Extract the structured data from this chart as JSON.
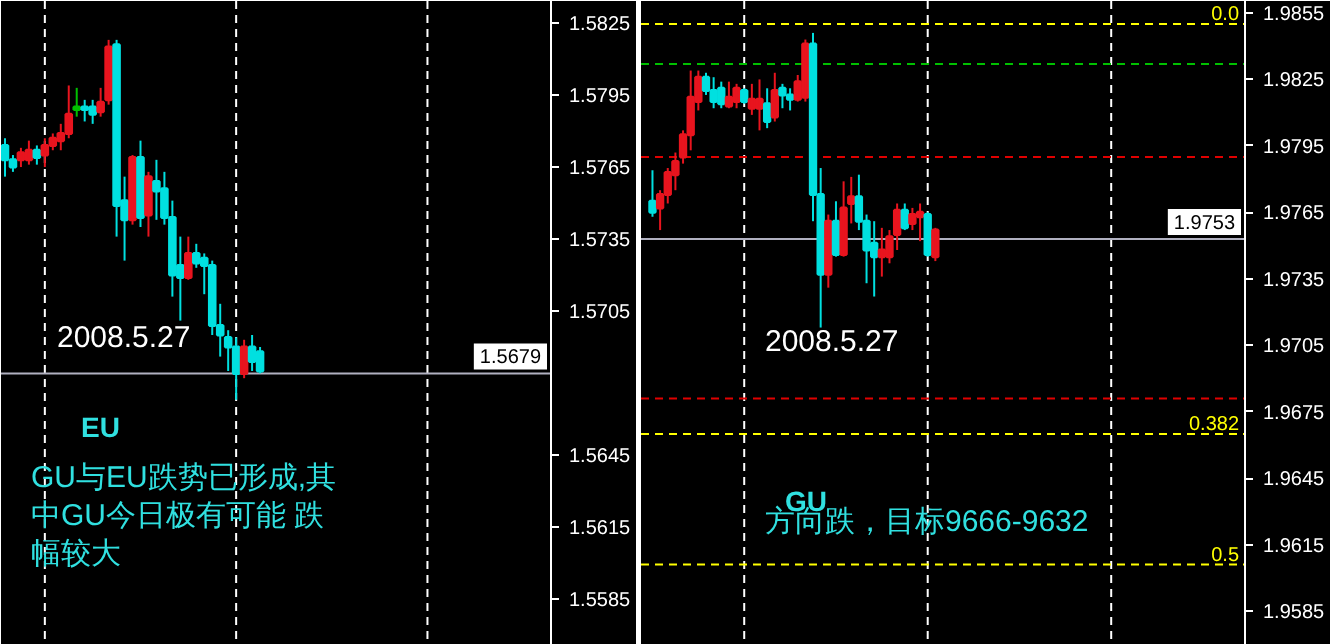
{
  "chart_data": [
    {
      "type": "candlestick",
      "tick_labels": "y",
      "categories": [
        null,
        null,
        null,
        null,
        null,
        null,
        null,
        null,
        null,
        null,
        null,
        null,
        null,
        null,
        null,
        null,
        null,
        null,
        null,
        null,
        null,
        null,
        null,
        null,
        null,
        null,
        null,
        null,
        null,
        null,
        null,
        null,
        null,
        null,
        null,
        null,
        null,
        null,
        null,
        null,
        null,
        null,
        null,
        null,
        null,
        null,
        null,
        null,
        null,
        null,
        null,
        null,
        null,
        null,
        null,
        null,
        null,
        null,
        null,
        null,
        null,
        null,
        null,
        null,
        null,
        null,
        null,
        null,
        null
      ],
      "ohlc": [
        [
          1.5774,
          1.5777,
          1.5761,
          1.5768
        ],
        [
          1.5768,
          1.577,
          1.5763,
          1.5765
        ],
        [
          1.5768,
          1.5773,
          1.5765,
          1.5771
        ],
        [
          1.5768,
          1.5776,
          1.5766,
          1.5772
        ],
        [
          1.5772,
          1.5774,
          1.5766,
          1.5769
        ],
        [
          1.577,
          1.5777,
          1.5765,
          1.5774
        ],
        [
          1.5774,
          1.5779,
          1.5772,
          1.5777
        ],
        [
          1.5776,
          1.5783,
          1.5772,
          1.5779
        ],
        [
          1.5779,
          1.5799,
          1.5777,
          1.5787
        ],
        [
          1.5789,
          1.5798,
          1.5786,
          1.579
        ],
        [
          1.579,
          1.5793,
          1.5784,
          1.5789
        ],
        [
          1.579,
          1.5793,
          1.5783,
          1.5787
        ],
        [
          1.5788,
          1.5798,
          1.5786,
          1.5792
        ],
        [
          1.5793,
          1.5818,
          1.5791,
          1.5815
        ],
        [
          1.5816,
          1.5818,
          1.5736,
          1.5749
        ],
        [
          1.5751,
          1.5761,
          1.5726,
          1.5743
        ],
        [
          1.5743,
          1.577,
          1.5741,
          1.5769
        ],
        [
          1.5769,
          1.5776,
          1.574,
          1.5744
        ],
        [
          1.5745,
          1.5763,
          1.5736,
          1.5761
        ],
        [
          1.5759,
          1.5768,
          1.5743,
          1.5755
        ],
        [
          1.5756,
          1.5763,
          1.5741,
          1.5744
        ],
        [
          1.5744,
          1.5751,
          1.5711,
          1.572
        ],
        [
          1.5724,
          1.5736,
          1.5701,
          1.5719
        ],
        [
          1.5719,
          1.5736,
          1.5718,
          1.5729
        ],
        [
          1.5729,
          1.5733,
          1.5723,
          1.5725
        ],
        [
          1.5727,
          1.5729,
          1.5712,
          1.5724
        ],
        [
          1.5724,
          1.5726,
          1.5695,
          1.5699
        ],
        [
          1.5699,
          1.5708,
          1.5686,
          1.5695
        ],
        [
          1.5694,
          1.5697,
          1.568,
          1.569
        ],
        [
          1.569,
          1.5694,
          1.5668,
          1.5679
        ],
        [
          1.5679,
          1.5693,
          1.5677,
          1.569
        ],
        [
          1.569,
          1.5695,
          1.568,
          1.5684
        ],
        [
          1.5688,
          1.569,
          1.5679,
          1.568
        ],
        null,
        null,
        null,
        null,
        null,
        null,
        null,
        null,
        null,
        null,
        null,
        null,
        null,
        null,
        null,
        null,
        null,
        null,
        null,
        null,
        null,
        null,
        null,
        null,
        null,
        null,
        null,
        null,
        null,
        null,
        null,
        null,
        null,
        null,
        null,
        null
      ],
      "colors": [
        "#00e0e0",
        "#00e0e0",
        "#e8141e",
        "#e8141e",
        "#00e0e0",
        "#e8141e",
        "#e8141e",
        "#e8141e",
        "#e8141e",
        "#00c000",
        "#00e0e0",
        "#00e0e0",
        "#e8141e",
        "#e8141e",
        "#00e0e0",
        "#00e0e0",
        "#e8141e",
        "#00e0e0",
        "#e8141e",
        "#00e0e0",
        "#00e0e0",
        "#00e0e0",
        "#00e0e0",
        "#e8141e",
        "#00e0e0",
        "#00e0e0",
        "#00e0e0",
        "#00e0e0",
        "#00e0e0",
        "#00e0e0",
        "#e8141e",
        "#00e0e0",
        "#00e0e0",
        null,
        null,
        null,
        null,
        null,
        null,
        null,
        null,
        null,
        null,
        null,
        null,
        null,
        null,
        null,
        null,
        null,
        null,
        null,
        null,
        null,
        null,
        null,
        null,
        null,
        null,
        null,
        null,
        null,
        null,
        null,
        null,
        null,
        null,
        null,
        null
      ],
      "ylim": [
        1.55658,
        1.58342
      ],
      "grid": true,
      "yticks": [
        1.5825,
        1.5795,
        1.5765,
        1.5735,
        1.5705,
        1.5645,
        1.5615,
        1.5585
      ],
      "ref_lines": [
        {
          "axis": "y",
          "value": 1.5679,
          "label": "1.5679",
          "color": "#b0b0c0",
          "line_style": "solid"
        }
      ],
      "annotations": [
        "2008.5.27",
        "EU",
        "GU与EU跌势已形成,其中GU今日极有可能 跌幅较大"
      ]
    },
    {
      "type": "candlestick",
      "tick_labels": "y",
      "categories": [
        null,
        null,
        null,
        null,
        null,
        null,
        null,
        null,
        null,
        null,
        null,
        null,
        null,
        null,
        null,
        null,
        null,
        null,
        null,
        null,
        null,
        null,
        null,
        null,
        null,
        null,
        null,
        null,
        null,
        null,
        null,
        null,
        null,
        null,
        null,
        null,
        null,
        null,
        null,
        null,
        null,
        null,
        null,
        null,
        null,
        null,
        null,
        null,
        null,
        null,
        null,
        null,
        null,
        null,
        null,
        null,
        null,
        null,
        null,
        null,
        null,
        null,
        null,
        null,
        null,
        null,
        null,
        null,
        null,
        null,
        null,
        null,
        null,
        null,
        null,
        null,
        null,
        null,
        null
      ],
      "ohlc": [
        null,
        [
          1.977,
          1.9784,
          1.9763,
          1.9765
        ],
        [
          1.9767,
          1.9775,
          1.9757,
          1.9773
        ],
        [
          1.9773,
          1.9785,
          1.9769,
          1.9783
        ],
        [
          1.9782,
          1.9792,
          1.9775,
          1.9788
        ],
        [
          1.979,
          1.9802,
          1.9787,
          1.98
        ],
        [
          1.98,
          1.9829,
          1.9793,
          1.9817
        ],
        [
          1.9815,
          1.9829,
          1.9811,
          1.9826
        ],
        [
          1.9826,
          1.9828,
          1.9818,
          1.982
        ],
        [
          1.982,
          1.9826,
          1.9812,
          1.9815
        ],
        [
          1.9821,
          1.9824,
          1.9812,
          1.9814
        ],
        [
          1.9813,
          1.9824,
          1.9812,
          1.9817
        ],
        [
          1.9815,
          1.9823,
          1.9812,
          1.9821
        ],
        [
          1.982,
          1.9821,
          1.9814,
          1.9815
        ],
        [
          1.9812,
          1.9823,
          1.9809,
          1.9816
        ],
        [
          1.9812,
          1.9825,
          1.9802,
          1.9816
        ],
        [
          1.9814,
          1.9821,
          1.9803,
          1.9806
        ],
        [
          1.9808,
          1.9828,
          1.9806,
          1.982
        ],
        [
          1.9821,
          1.9823,
          1.9812,
          1.9818
        ],
        [
          1.9818,
          1.9821,
          1.9811,
          1.9816
        ],
        [
          1.9816,
          1.9827,
          1.9815,
          1.9824
        ],
        [
          1.9817,
          1.9843,
          1.9815,
          1.9841
        ],
        [
          1.9841,
          1.9846,
          1.9761,
          1.9773
        ],
        [
          1.9773,
          1.9785,
          1.9713,
          1.9737
        ],
        [
          1.9737,
          1.9764,
          1.9731,
          1.9761
        ],
        [
          1.9761,
          1.977,
          1.9745,
          1.9746
        ],
        [
          1.9746,
          1.9779,
          1.9745,
          1.9767
        ],
        [
          1.9769,
          1.9781,
          1.976,
          1.9772
        ],
        [
          1.9772,
          1.9782,
          1.9757,
          1.9761
        ],
        [
          1.9761,
          1.9764,
          1.9733,
          1.9748
        ],
        [
          1.9751,
          1.9761,
          1.9727,
          1.9745
        ],
        [
          1.9745,
          1.9758,
          1.9736,
          1.9748
        ],
        [
          1.9745,
          1.9757,
          1.9742,
          1.9754
        ],
        [
          1.9755,
          1.9769,
          1.9748,
          1.9766
        ],
        [
          1.9766,
          1.9769,
          1.9757,
          1.9758
        ],
        [
          1.976,
          1.9767,
          1.9757,
          1.9764
        ],
        [
          1.9763,
          1.9769,
          1.9752,
          1.9765
        ],
        [
          1.9764,
          1.9765,
          1.9745,
          1.9746
        ],
        [
          1.9745,
          1.9758,
          1.9743,
          1.9757
        ],
        null,
        null,
        null,
        null,
        null,
        null,
        null,
        null,
        null,
        null,
        null,
        null,
        null,
        null,
        null,
        null,
        null,
        null,
        null,
        null,
        null,
        null,
        null,
        null,
        null,
        null,
        null,
        null,
        null,
        null,
        null,
        null,
        null,
        null,
        null,
        null,
        null,
        null,
        null,
        null
      ],
      "colors": [
        null,
        "#00e0e0",
        "#e8141e",
        "#e8141e",
        "#e8141e",
        "#e8141e",
        "#e8141e",
        "#e8141e",
        "#00e0e0",
        "#00e0e0",
        "#00e0e0",
        "#e8141e",
        "#e8141e",
        "#00e0e0",
        "#e8141e",
        "#e8141e",
        "#00e0e0",
        "#e8141e",
        "#00e0e0",
        "#00e0e0",
        "#e8141e",
        "#e8141e",
        "#00e0e0",
        "#00e0e0",
        "#e8141e",
        "#00e0e0",
        "#e8141e",
        "#e8141e",
        "#00e0e0",
        "#00e0e0",
        "#00e0e0",
        "#e8141e",
        "#e8141e",
        "#e8141e",
        "#00e0e0",
        "#e8141e",
        "#e8141e",
        "#00e0e0",
        "#e8141e",
        null,
        null,
        null,
        null,
        null,
        null,
        null,
        null,
        null,
        null,
        null,
        null,
        null,
        null,
        null,
        null,
        null,
        null,
        null,
        null,
        null,
        null,
        null,
        null,
        null,
        null,
        null,
        null,
        null,
        null,
        null,
        null,
        null,
        null,
        null,
        null,
        null,
        null,
        null,
        null
      ],
      "ylim": [
        1.95697,
        1.98604
      ],
      "grid": true,
      "yticks": [
        1.9855,
        1.9825,
        1.9795,
        1.9765,
        1.9735,
        1.9705,
        1.9675,
        1.9645,
        1.9615,
        1.9585
      ],
      "ref_lines": [
        {
          "axis": "y",
          "value": 1.985,
          "color": "#ffff00",
          "line_style": "dashed"
        },
        {
          "axis": "y",
          "value": 1.9832,
          "color": "#00c000",
          "line_style": "dashed"
        },
        {
          "axis": "y",
          "value": 1.979,
          "color": "#e00000",
          "line_style": "dashed"
        },
        {
          "axis": "y",
          "value": 1.9681,
          "color": "#e00000",
          "line_style": "dashed"
        },
        {
          "axis": "y",
          "value": 1.9665,
          "color": "#ffff00",
          "line_style": "dashed"
        },
        {
          "axis": "y",
          "value": 1.9606,
          "color": "#ffff00",
          "line_style": "dashed"
        },
        {
          "axis": "y",
          "value": 1.9753,
          "label": "1.9753",
          "color": "#b0b0c0",
          "line_style": "solid"
        }
      ],
      "annotations": [
        "2008.5.27",
        "GU",
        "方向跌，目标9666-9632",
        {
          "text": "0.0",
          "y": 1.985
        },
        {
          "text": "0.382",
          "y": 1.9665
        },
        {
          "text": "0.5",
          "y": 1.9606
        }
      ]
    }
  ]
}
